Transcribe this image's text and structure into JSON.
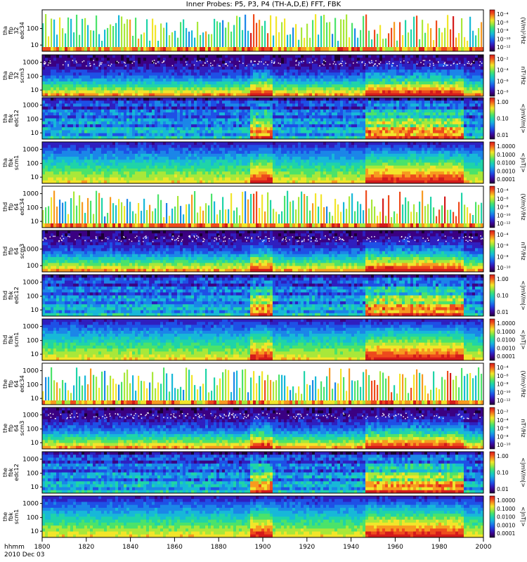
{
  "title": "Inner Probes: P5, P3, P4 (TH-A,D,E) FFT, FBK",
  "time_label_1": "hhmm",
  "time_label_2": "2010 Dec 03",
  "colorscale": [
    "#1a0033",
    "#3b0082",
    "#2f1fbf",
    "#1e50e6",
    "#1b86e8",
    "#17b8d8",
    "#1fd4a8",
    "#4be36a",
    "#a8e83a",
    "#f2e52a",
    "#f79a1f",
    "#ee4b1c",
    "#d41b1b"
  ],
  "chart_data": {
    "type": "heatmap",
    "x_ticks": [
      "1800",
      "1820",
      "1840",
      "1860",
      "1880",
      "1900",
      "1920",
      "1940",
      "1960",
      "1980",
      "2000"
    ],
    "panels": [
      {
        "label": [
          "tha",
          "ffp",
          "32",
          "edc34"
        ],
        "y_ticks": [
          "100",
          "10"
        ],
        "cbar_label": "(V/m)²/Hz",
        "cbar_ticks": [
          "10⁻⁴",
          "10⁻⁶",
          "10⁻⁸",
          "10⁻¹⁰",
          "10⁻¹²"
        ],
        "kind": "sparse"
      },
      {
        "label": [
          "tha",
          "ffp",
          "32",
          "scm3"
        ],
        "y_ticks": [
          "1000",
          "100",
          "10"
        ],
        "cbar_label": "nT²/Hz",
        "cbar_ticks": [
          "10⁻²",
          "10⁻⁴",
          "10⁻⁶",
          "10⁻⁸"
        ],
        "kind": "scm"
      },
      {
        "label": [
          "tha",
          "fbk",
          "edc12"
        ],
        "y_ticks": [
          "1000",
          "100",
          "10"
        ],
        "cbar_label": "<|mV/m|>",
        "cbar_ticks": [
          "1.00",
          "0.10",
          "0.01"
        ],
        "kind": "fbk_edc"
      },
      {
        "label": [
          "tha",
          "fbk",
          "scm1"
        ],
        "y_ticks": [
          "1000",
          "100",
          "10"
        ],
        "cbar_label": "<|nT|>",
        "cbar_ticks": [
          "1.0000",
          "0.1000",
          "0.0100",
          "0.0010",
          "0.0001"
        ],
        "kind": "fbk_scm"
      },
      {
        "label": [
          "thd",
          "ffp",
          "64",
          "edc34"
        ],
        "y_ticks": [
          "1000",
          "100",
          "10"
        ],
        "cbar_label": "(V/m)²/Hz",
        "cbar_ticks": [
          "10⁻⁴",
          "10⁻⁶",
          "10⁻⁸",
          "10⁻¹⁰",
          "10⁻¹²"
        ],
        "kind": "sparse"
      },
      {
        "label": [
          "thd",
          "ffp",
          "64",
          "scm3"
        ],
        "y_ticks": [
          "1000",
          "100"
        ],
        "cbar_label": "nT²/Hz",
        "cbar_ticks": [
          "10⁻⁴",
          "10⁻⁶",
          "10⁻⁸",
          "10⁻¹⁰"
        ],
        "kind": "scm"
      },
      {
        "label": [
          "thd",
          "fbk",
          "edc12"
        ],
        "y_ticks": [
          "1000",
          "100",
          "10"
        ],
        "cbar_label": "<|mV/m|>",
        "cbar_ticks": [
          "1.00",
          "0.10",
          "0.01"
        ],
        "kind": "fbk_edc"
      },
      {
        "label": [
          "thd",
          "fbk",
          "scm1"
        ],
        "y_ticks": [
          "1000",
          "100",
          "10"
        ],
        "cbar_label": "<|nT|>",
        "cbar_ticks": [
          "1.0000",
          "0.1000",
          "0.0100",
          "0.0010",
          "0.0001"
        ],
        "kind": "fbk_scm"
      },
      {
        "label": [
          "the",
          "ffp",
          "64",
          "edc34"
        ],
        "y_ticks": [
          "1000",
          "100",
          "10"
        ],
        "cbar_label": "(V/m)²/Hz",
        "cbar_ticks": [
          "10⁻⁴",
          "10⁻⁶",
          "10⁻⁸",
          "10⁻¹⁰",
          "10⁻¹²"
        ],
        "kind": "sparse"
      },
      {
        "label": [
          "the",
          "ffp",
          "64",
          "scm3"
        ],
        "y_ticks": [
          "1000",
          "100",
          "10"
        ],
        "cbar_label": "nT²/Hz",
        "cbar_ticks": [
          "10⁻²",
          "10⁻⁴",
          "10⁻⁶",
          "10⁻⁸",
          "10⁻¹⁰"
        ],
        "kind": "scm"
      },
      {
        "label": [
          "the",
          "fbk",
          "edc12"
        ],
        "y_ticks": [
          "1000",
          "100",
          "10"
        ],
        "cbar_label": "<|mV/m|>",
        "cbar_ticks": [
          "1.00",
          "0.10",
          "0.01"
        ],
        "kind": "fbk_edc"
      },
      {
        "label": [
          "the",
          "fbk",
          "scm1"
        ],
        "y_ticks": [
          "1000",
          "100",
          "10"
        ],
        "cbar_label": "<|nT|>",
        "cbar_ticks": [
          "1.0000",
          "0.1000",
          "0.0100",
          "0.0010",
          "0.0001"
        ],
        "kind": "fbk_scm"
      }
    ]
  }
}
